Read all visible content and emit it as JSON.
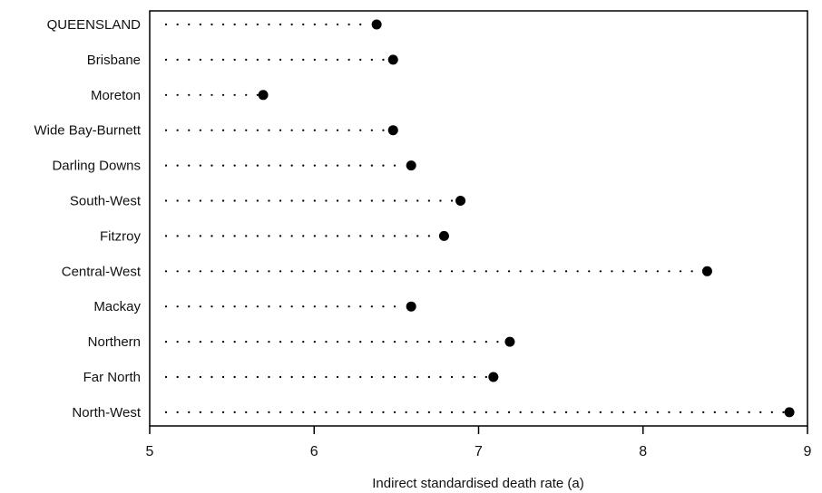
{
  "chart_data": {
    "type": "scatter",
    "style": "dot-plot",
    "title": "",
    "xlabel": "Indirect standardised death rate (a)",
    "ylabel": "",
    "xlim": [
      5,
      9
    ],
    "xticks": [
      "5",
      "6",
      "7",
      "8",
      "9"
    ],
    "grid": false,
    "categories": [
      "QUEENSLAND",
      "Brisbane",
      "Moreton",
      "Wide Bay-Burnett",
      "Darling Downs",
      "South-West",
      "Fitzroy",
      "Central-West",
      "Mackay",
      "Northern",
      "Far North",
      "North-West"
    ],
    "values": [
      6.38,
      6.48,
      5.69,
      6.48,
      6.59,
      6.89,
      6.79,
      8.39,
      6.59,
      7.19,
      7.09,
      8.89
    ],
    "colors": {
      "marker": "#000000",
      "axis": "#000000",
      "leader": "#000000"
    }
  }
}
